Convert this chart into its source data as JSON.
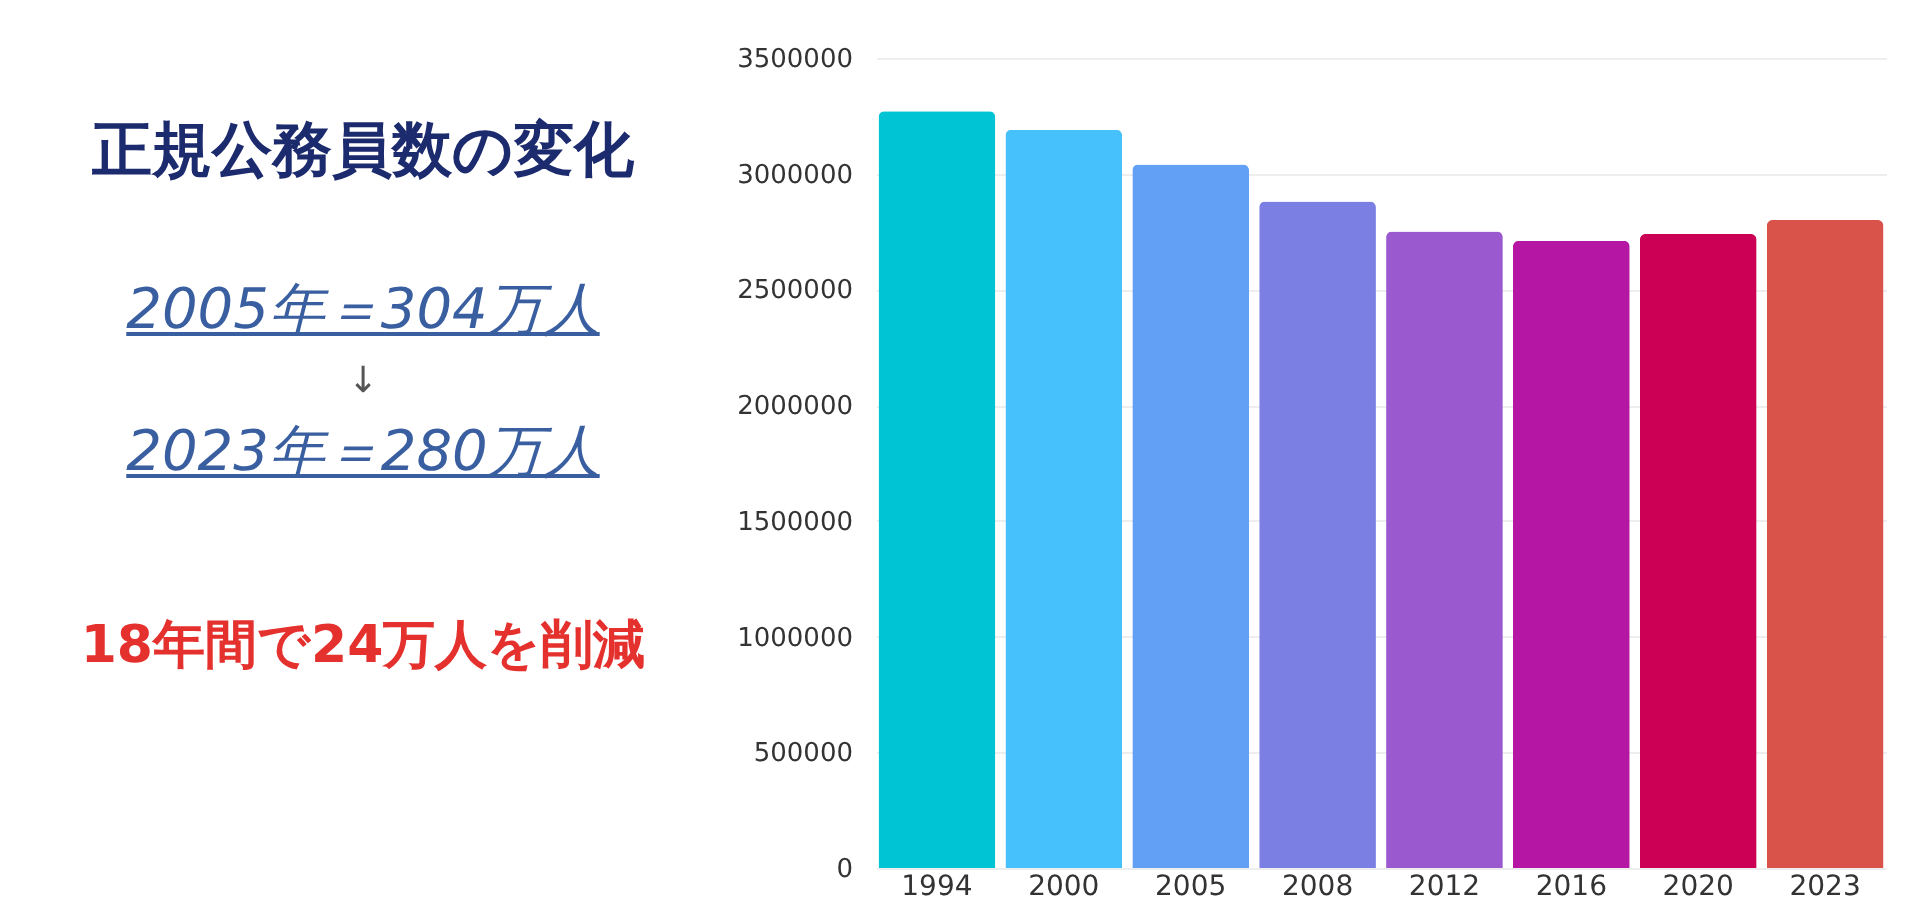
{
  "chart_data": {
    "type": "bar",
    "title": "正規公務員数の変化",
    "annotations": [
      "2005年＝304万人",
      "↓",
      "2023年＝280万人",
      "18年間で24万人を削減"
    ],
    "categories": [
      "1994",
      "2000",
      "2005",
      "2008",
      "2012",
      "2016",
      "2020",
      "2023"
    ],
    "values": [
      3270000,
      3190000,
      3040000,
      2880000,
      2750000,
      2710000,
      2740000,
      2800000
    ],
    "colors": [
      "#00c4d4",
      "#46c1fb",
      "#62a0f6",
      "#7b7fe3",
      "#9b59d0",
      "#b516a4",
      "#cc0055",
      "#d9534a"
    ],
    "ylim": [
      0,
      3500000
    ],
    "yticks": [
      0,
      500000,
      1000000,
      1500000,
      2000000,
      2500000,
      3000000,
      3500000
    ],
    "grid": "y"
  }
}
